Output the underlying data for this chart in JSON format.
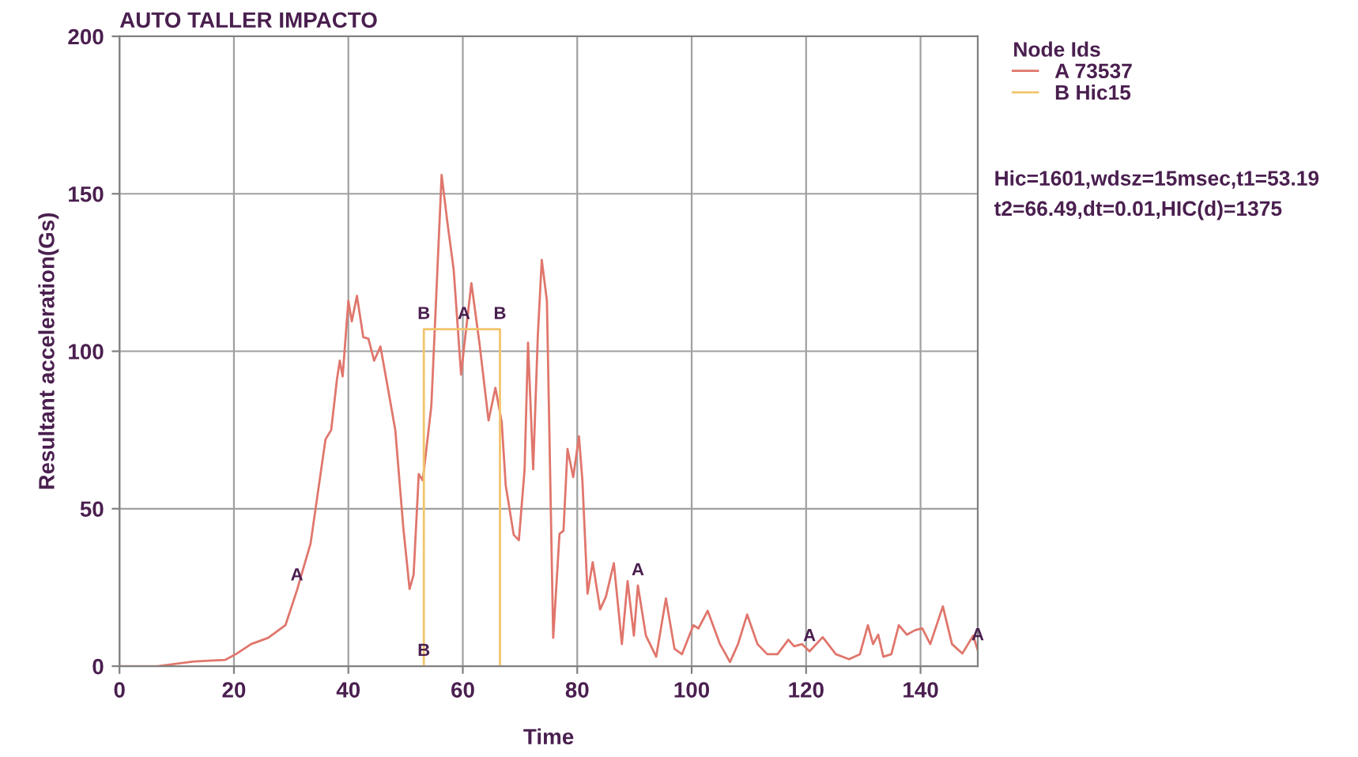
{
  "chart_data": {
    "type": "line",
    "title": "AUTO TALLER IMPACTO",
    "xlabel": "Time",
    "ylabel": "Resultant acceleration(Gs)",
    "legend_title": "Node Ids",
    "legend": "right",
    "grid": true,
    "xlim": [
      0,
      150
    ],
    "ylim": [
      0,
      200
    ],
    "xticks": [
      0,
      20,
      40,
      60,
      80,
      100,
      120,
      140
    ],
    "yticks": [
      0,
      50,
      100,
      150,
      200
    ],
    "series": [
      {
        "name": "A 73537",
        "color": "#e0766c",
        "x": [
          0,
          5,
          6.6,
          13,
          18.5,
          20.5,
          23,
          26,
          29,
          31,
          33.4,
          36,
          37,
          38,
          38.5,
          39,
          40,
          40.6,
          41.5,
          42.6,
          43.5,
          44.5,
          45.6,
          46.3,
          48.2,
          49.6,
          50.7,
          51.4,
          52.3,
          53,
          54.5,
          56.3,
          57.3,
          58.4,
          59.7,
          60.2,
          61.5,
          62.9,
          64.5,
          65.7,
          66.8,
          67.5,
          68.9,
          69.8,
          70.8,
          71.4,
          72.3,
          73.1,
          73.8,
          74.7,
          75.8,
          76.9,
          77.6,
          78.3,
          79.3,
          80.3,
          80.9,
          81.8,
          82.7,
          84,
          85,
          86.4,
          87.8,
          88.8,
          89.9,
          90.6,
          92,
          93.8,
          95.5,
          97,
          98.3,
          100.3,
          101.2,
          102.8,
          104.9,
          106.7,
          108.1,
          109.7,
          111.5,
          113.2,
          115,
          116.9,
          117.9,
          119.3,
          120.6,
          122.9,
          125.2,
          127.5,
          129.4,
          130.8,
          131.7,
          132.6,
          133.5,
          134.9,
          136.2,
          137.6,
          139,
          140.3,
          141.7,
          143.9,
          145.5,
          147.3,
          149.2,
          150
        ],
        "values": [
          0,
          0,
          0,
          1.5,
          2,
          4,
          7,
          9,
          13,
          24,
          39,
          72,
          75,
          91,
          97,
          92,
          116,
          109.5,
          117.6,
          104.5,
          104,
          97,
          101.5,
          94.5,
          75,
          44,
          24.5,
          29,
          61,
          59,
          82.6,
          156,
          141,
          126,
          92.6,
          101,
          121.6,
          102.7,
          78,
          88.4,
          77.5,
          57.4,
          41.7,
          40,
          62.5,
          102.7,
          62.5,
          104.5,
          129,
          116,
          9,
          42,
          43,
          69,
          60,
          73,
          59,
          23,
          33,
          18,
          22,
          32.7,
          7,
          27,
          9.7,
          25.6,
          9.7,
          3,
          21.5,
          5.5,
          3.8,
          13,
          12,
          17.6,
          7.2,
          1.3,
          7,
          16.4,
          7,
          3.8,
          3.8,
          8.4,
          6.3,
          7,
          4.7,
          9.2,
          3.8,
          2.2,
          3.8,
          13,
          7,
          10,
          3,
          3.8,
          13,
          10,
          11.4,
          12,
          7,
          19,
          7,
          4,
          9.7,
          5
        ]
      },
      {
        "name": "B Hic15",
        "color": "#f2c46c",
        "x": [
          53.19,
          53.19,
          66.49,
          66.49
        ],
        "values": [
          0,
          107,
          107,
          0
        ]
      }
    ],
    "annotations": [
      {
        "text": "A",
        "x": 31,
        "y": 24
      },
      {
        "text": "B",
        "x": 53.19,
        "y": 107
      },
      {
        "text": "A",
        "x": 60.2,
        "y": 107
      },
      {
        "text": "B",
        "x": 66.49,
        "y": 107
      },
      {
        "text": "B",
        "x": 53.19,
        "y": 0
      },
      {
        "text": "A",
        "x": 90.6,
        "y": 25.6
      },
      {
        "text": "A",
        "x": 120.6,
        "y": 4.7
      },
      {
        "text": "A",
        "x": 150,
        "y": 5
      },
      "Hic=1601,wdsz=15msec,t1=53.19",
      "t2=66.49,dt=0.01,HIC(d)=1375"
    ]
  }
}
